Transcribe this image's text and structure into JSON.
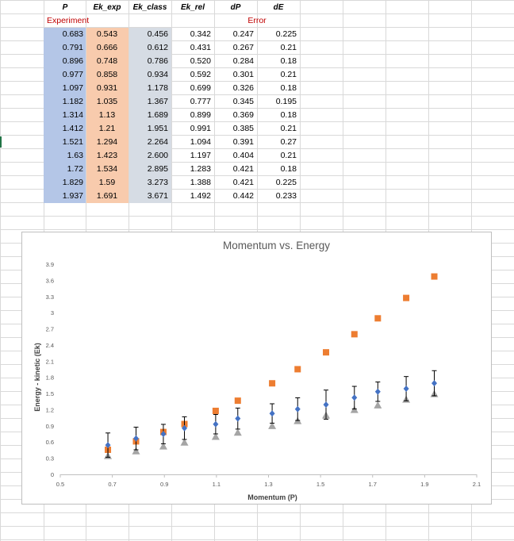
{
  "table": {
    "headers": [
      "P",
      "Ek_exp",
      "Ek_class",
      "Ek_rel",
      "dP",
      "dE"
    ],
    "experiment_label": "Experiment",
    "error_label": "Error",
    "rows": [
      [
        "0.683",
        "0.543",
        "0.456",
        "0.342",
        "0.247",
        "0.225"
      ],
      [
        "0.791",
        "0.666",
        "0.612",
        "0.431",
        "0.267",
        "0.21"
      ],
      [
        "0.896",
        "0.748",
        "0.786",
        "0.520",
        "0.284",
        "0.18"
      ],
      [
        "0.977",
        "0.858",
        "0.934",
        "0.592",
        "0.301",
        "0.21"
      ],
      [
        "1.097",
        "0.931",
        "1.178",
        "0.699",
        "0.326",
        "0.18"
      ],
      [
        "1.182",
        "1.035",
        "1.367",
        "0.777",
        "0.345",
        "0.195"
      ],
      [
        "1.314",
        "1.13",
        "1.689",
        "0.899",
        "0.369",
        "0.18"
      ],
      [
        "1.412",
        "1.21",
        "1.951",
        "0.991",
        "0.385",
        "0.21"
      ],
      [
        "1.521",
        "1.294",
        "2.264",
        "1.094",
        "0.391",
        "0.27"
      ],
      [
        "1.63",
        "1.423",
        "2.600",
        "1.197",
        "0.404",
        "0.21"
      ],
      [
        "1.72",
        "1.534",
        "2.895",
        "1.283",
        "0.421",
        "0.18"
      ],
      [
        "1.829",
        "1.59",
        "3.273",
        "1.388",
        "0.421",
        "0.225"
      ],
      [
        "1.937",
        "1.691",
        "3.671",
        "1.492",
        "0.442",
        "0.233"
      ]
    ]
  },
  "chart_data": {
    "type": "scatter",
    "title": "Momentum vs. Energy",
    "xlabel": "Momentum (P)",
    "ylabel": "Energy - kinetic (Ek)",
    "xlim": [
      0.5,
      2.1
    ],
    "ylim": [
      0,
      3.9
    ],
    "xticks": [
      "0.5",
      "0.7",
      "0.9",
      "1.1",
      "1.3",
      "1.5",
      "1.7",
      "1.9",
      "2.1"
    ],
    "yticks": [
      "0",
      "0.3",
      "0.6",
      "0.9",
      "1.2",
      "1.5",
      "1.8",
      "2.1",
      "2.4",
      "2.7",
      "3",
      "3.3",
      "3.6",
      "3.9"
    ],
    "x": [
      0.683,
      0.791,
      0.896,
      0.977,
      1.097,
      1.182,
      1.314,
      1.412,
      1.521,
      1.63,
      1.72,
      1.829,
      1.937
    ],
    "series": [
      {
        "name": "Ek_exp",
        "marker": "diamond",
        "color": "#4472c4",
        "values": [
          0.543,
          0.666,
          0.748,
          0.858,
          0.931,
          1.035,
          1.13,
          1.21,
          1.294,
          1.423,
          1.534,
          1.59,
          1.691
        ],
        "yerr": [
          0.225,
          0.21,
          0.18,
          0.21,
          0.18,
          0.195,
          0.18,
          0.21,
          0.27,
          0.21,
          0.18,
          0.225,
          0.233
        ]
      },
      {
        "name": "Ek_class",
        "marker": "square",
        "color": "#ed7d31",
        "values": [
          0.456,
          0.612,
          0.786,
          0.934,
          1.178,
          1.367,
          1.689,
          1.951,
          2.264,
          2.6,
          2.895,
          3.273,
          3.671
        ]
      },
      {
        "name": "Ek_rel",
        "marker": "triangle",
        "color": "#a5a5a5",
        "values": [
          0.342,
          0.431,
          0.52,
          0.592,
          0.699,
          0.777,
          0.899,
          0.991,
          1.094,
          1.197,
          1.283,
          1.388,
          1.492
        ]
      }
    ]
  }
}
